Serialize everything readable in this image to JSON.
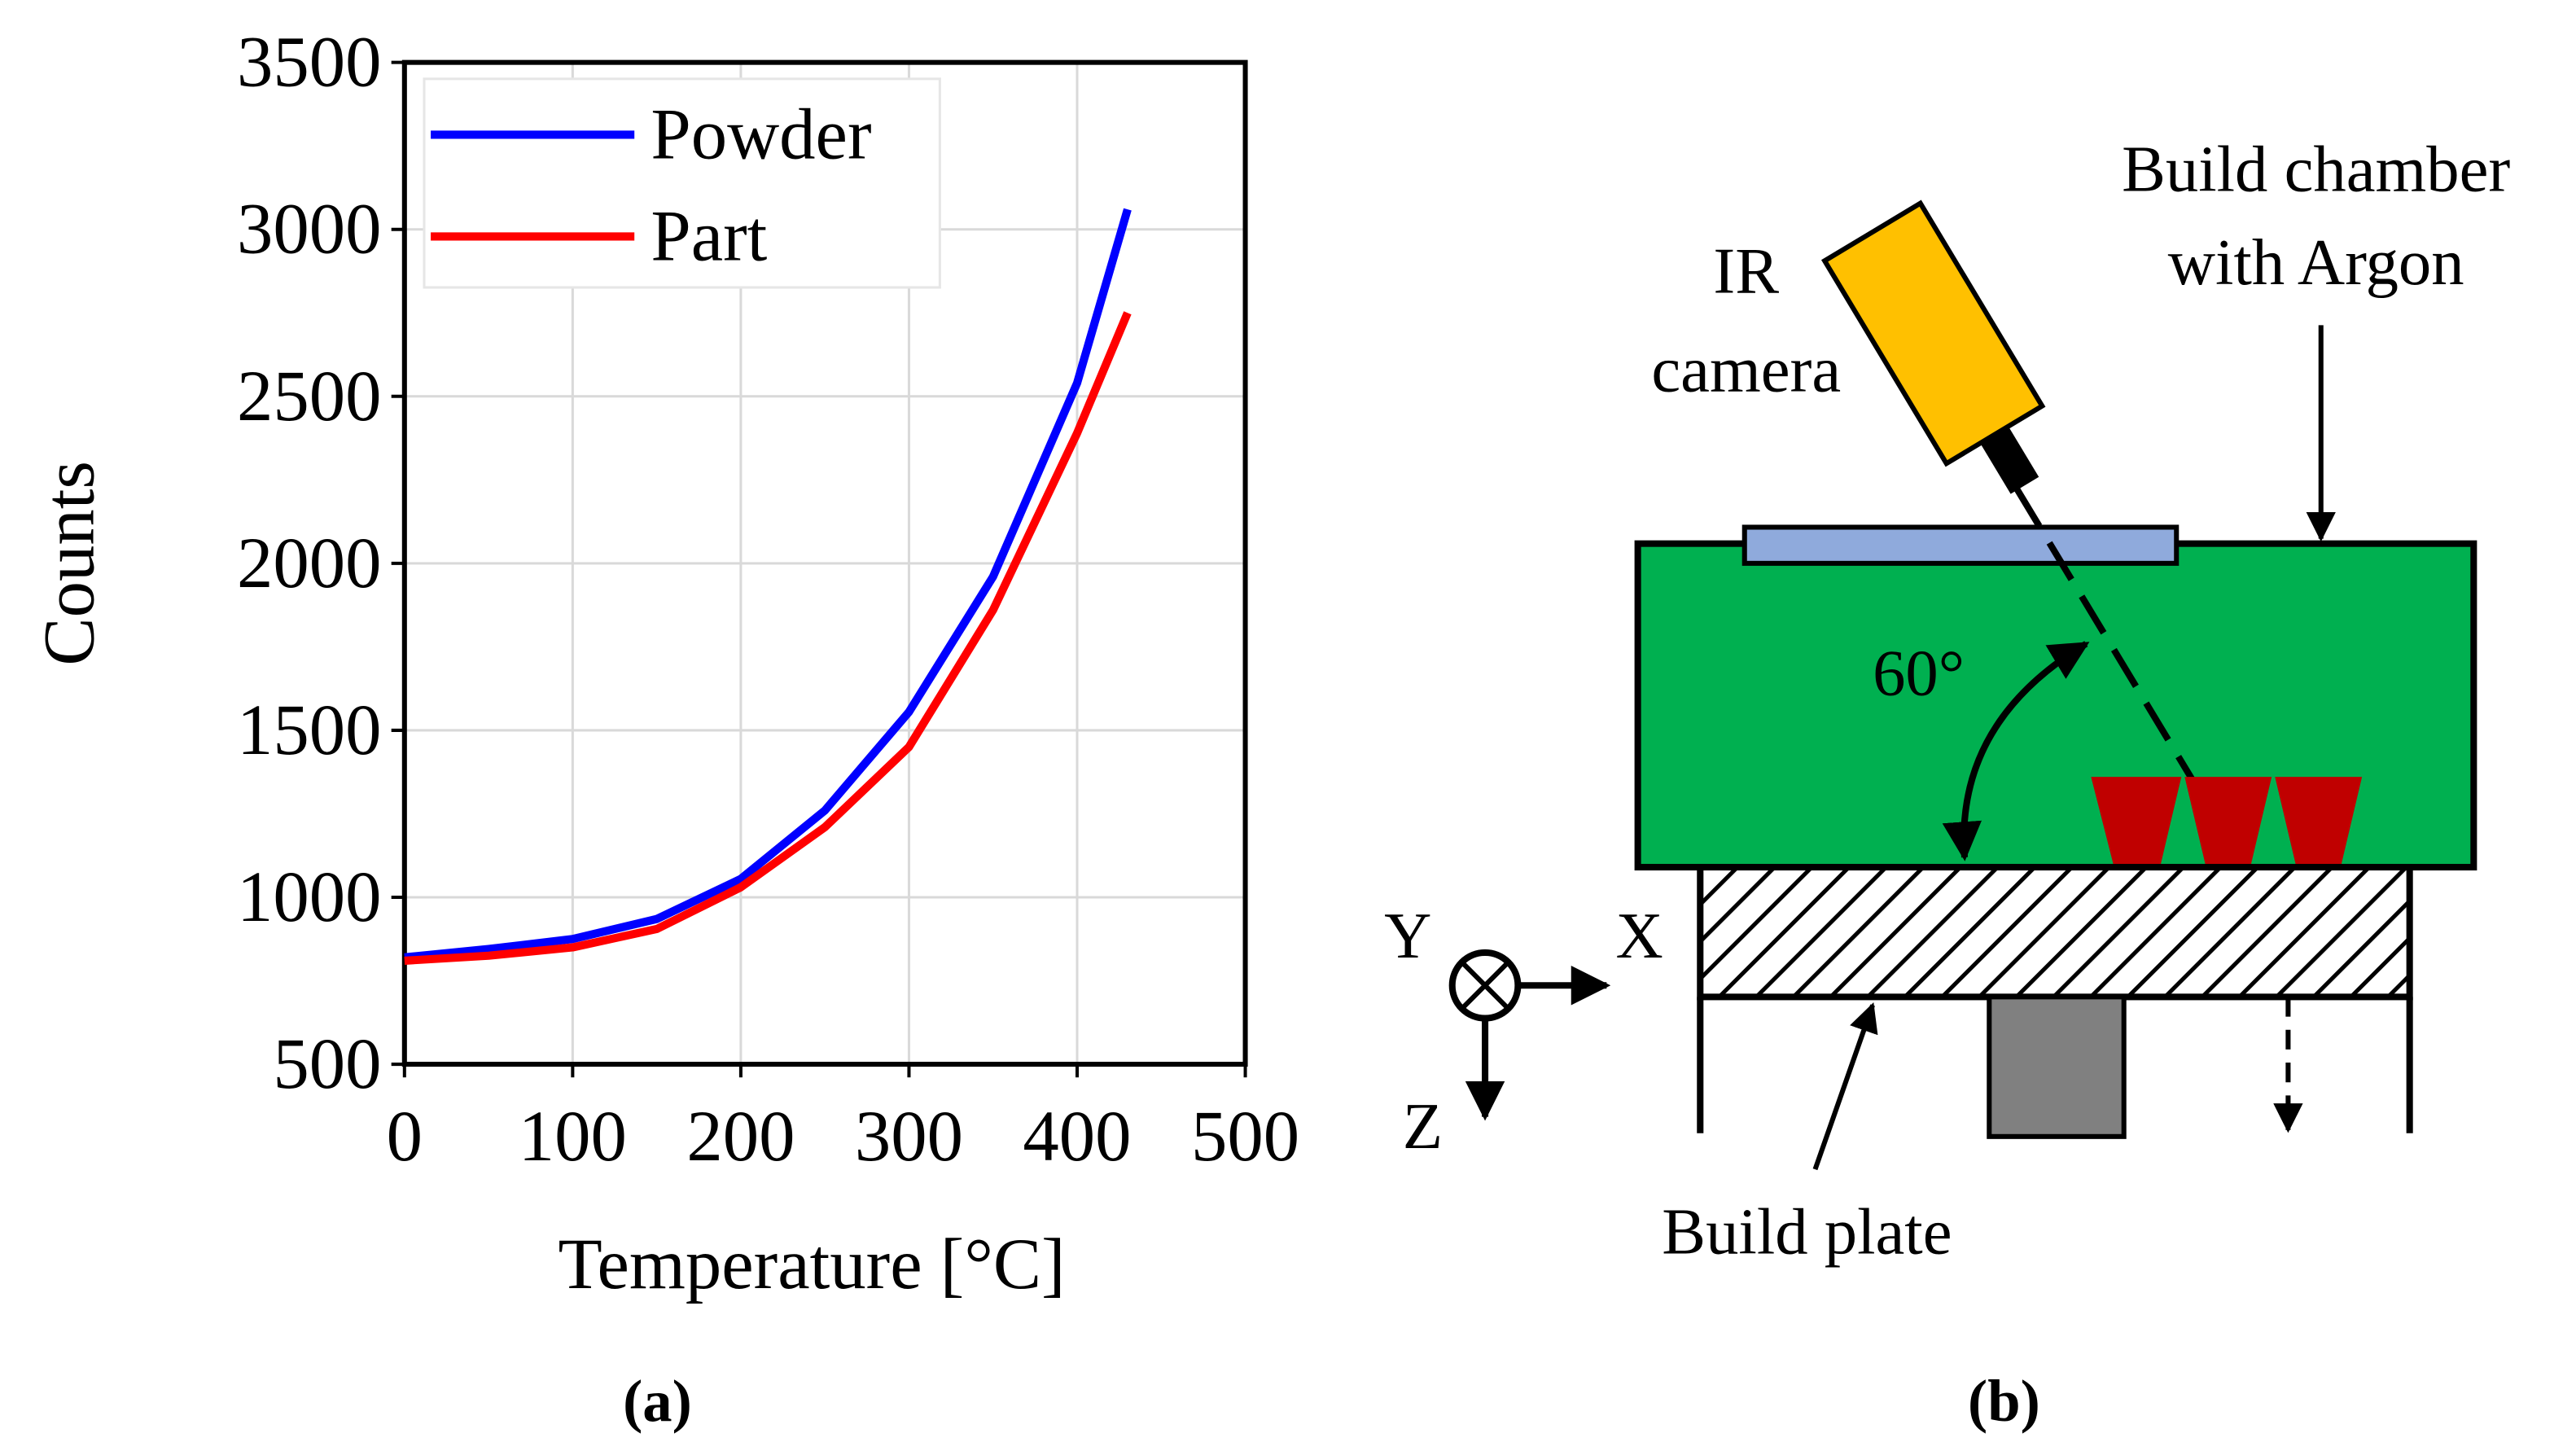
{
  "chart_data": {
    "type": "line",
    "x": [
      0,
      50,
      100,
      150,
      200,
      250,
      300,
      350,
      400,
      430
    ],
    "series": [
      {
        "name": "Powder",
        "color": "#0000ff",
        "values": [
          820,
          845,
          875,
          935,
          1055,
          1260,
          1555,
          1960,
          2540,
          3060
        ]
      },
      {
        "name": "Part",
        "color": "#ff0000",
        "values": [
          810,
          825,
          850,
          905,
          1030,
          1210,
          1450,
          1860,
          2390,
          2750
        ]
      }
    ],
    "xlabel": "Temperature [°C]",
    "ylabel": "Counts",
    "xlim": [
      0,
      500
    ],
    "xticks": [
      0,
      100,
      200,
      300,
      400,
      500
    ],
    "ylim": [
      500,
      3500
    ],
    "yticks": [
      500,
      1000,
      1500,
      2000,
      2500,
      3000,
      3500
    ],
    "grid": true,
    "legend": "upper left"
  },
  "diagram": {
    "camera": [
      "IR",
      "camera"
    ],
    "chamber": [
      "Build chamber",
      "with Argon"
    ],
    "angle": "60°",
    "plate": "Build plate",
    "axes": {
      "y": "Y",
      "x": "X",
      "z": "Z"
    }
  },
  "captions": [
    "(a)",
    "(b)"
  ]
}
